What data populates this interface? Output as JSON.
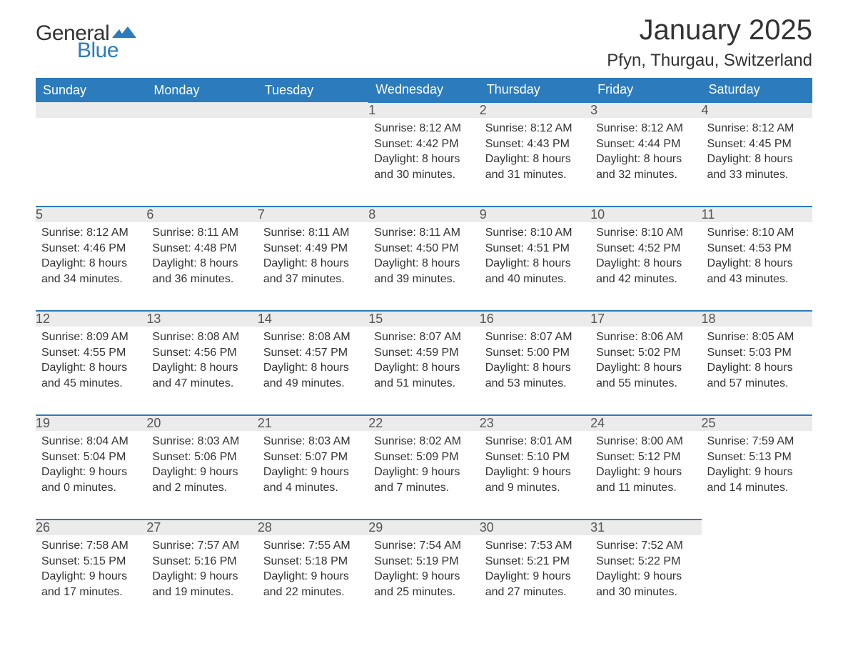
{
  "brand": {
    "general": "General",
    "blue": "Blue"
  },
  "title": "January 2025",
  "location": "Pfyn, Thurgau, Switzerland",
  "colors": {
    "header_bg": "#2b7bbd",
    "header_text": "#ffffff",
    "daynum_bg": "#ebebeb",
    "daynum_border": "#2b7bbd",
    "body_text": "#333333",
    "logo_blue": "#2b7bbd"
  },
  "weekdays": [
    "Sunday",
    "Monday",
    "Tuesday",
    "Wednesday",
    "Thursday",
    "Friday",
    "Saturday"
  ],
  "weeks": [
    [
      {
        "n": "",
        "sunrise": "",
        "sunset": "",
        "daylight": ""
      },
      {
        "n": "",
        "sunrise": "",
        "sunset": "",
        "daylight": ""
      },
      {
        "n": "",
        "sunrise": "",
        "sunset": "",
        "daylight": ""
      },
      {
        "n": "1",
        "sunrise": "Sunrise: 8:12 AM",
        "sunset": "Sunset: 4:42 PM",
        "daylight": "Daylight: 8 hours and 30 minutes."
      },
      {
        "n": "2",
        "sunrise": "Sunrise: 8:12 AM",
        "sunset": "Sunset: 4:43 PM",
        "daylight": "Daylight: 8 hours and 31 minutes."
      },
      {
        "n": "3",
        "sunrise": "Sunrise: 8:12 AM",
        "sunset": "Sunset: 4:44 PM",
        "daylight": "Daylight: 8 hours and 32 minutes."
      },
      {
        "n": "4",
        "sunrise": "Sunrise: 8:12 AM",
        "sunset": "Sunset: 4:45 PM",
        "daylight": "Daylight: 8 hours and 33 minutes."
      }
    ],
    [
      {
        "n": "5",
        "sunrise": "Sunrise: 8:12 AM",
        "sunset": "Sunset: 4:46 PM",
        "daylight": "Daylight: 8 hours and 34 minutes."
      },
      {
        "n": "6",
        "sunrise": "Sunrise: 8:11 AM",
        "sunset": "Sunset: 4:48 PM",
        "daylight": "Daylight: 8 hours and 36 minutes."
      },
      {
        "n": "7",
        "sunrise": "Sunrise: 8:11 AM",
        "sunset": "Sunset: 4:49 PM",
        "daylight": "Daylight: 8 hours and 37 minutes."
      },
      {
        "n": "8",
        "sunrise": "Sunrise: 8:11 AM",
        "sunset": "Sunset: 4:50 PM",
        "daylight": "Daylight: 8 hours and 39 minutes."
      },
      {
        "n": "9",
        "sunrise": "Sunrise: 8:10 AM",
        "sunset": "Sunset: 4:51 PM",
        "daylight": "Daylight: 8 hours and 40 minutes."
      },
      {
        "n": "10",
        "sunrise": "Sunrise: 8:10 AM",
        "sunset": "Sunset: 4:52 PM",
        "daylight": "Daylight: 8 hours and 42 minutes."
      },
      {
        "n": "11",
        "sunrise": "Sunrise: 8:10 AM",
        "sunset": "Sunset: 4:53 PM",
        "daylight": "Daylight: 8 hours and 43 minutes."
      }
    ],
    [
      {
        "n": "12",
        "sunrise": "Sunrise: 8:09 AM",
        "sunset": "Sunset: 4:55 PM",
        "daylight": "Daylight: 8 hours and 45 minutes."
      },
      {
        "n": "13",
        "sunrise": "Sunrise: 8:08 AM",
        "sunset": "Sunset: 4:56 PM",
        "daylight": "Daylight: 8 hours and 47 minutes."
      },
      {
        "n": "14",
        "sunrise": "Sunrise: 8:08 AM",
        "sunset": "Sunset: 4:57 PM",
        "daylight": "Daylight: 8 hours and 49 minutes."
      },
      {
        "n": "15",
        "sunrise": "Sunrise: 8:07 AM",
        "sunset": "Sunset: 4:59 PM",
        "daylight": "Daylight: 8 hours and 51 minutes."
      },
      {
        "n": "16",
        "sunrise": "Sunrise: 8:07 AM",
        "sunset": "Sunset: 5:00 PM",
        "daylight": "Daylight: 8 hours and 53 minutes."
      },
      {
        "n": "17",
        "sunrise": "Sunrise: 8:06 AM",
        "sunset": "Sunset: 5:02 PM",
        "daylight": "Daylight: 8 hours and 55 minutes."
      },
      {
        "n": "18",
        "sunrise": "Sunrise: 8:05 AM",
        "sunset": "Sunset: 5:03 PM",
        "daylight": "Daylight: 8 hours and 57 minutes."
      }
    ],
    [
      {
        "n": "19",
        "sunrise": "Sunrise: 8:04 AM",
        "sunset": "Sunset: 5:04 PM",
        "daylight": "Daylight: 9 hours and 0 minutes."
      },
      {
        "n": "20",
        "sunrise": "Sunrise: 8:03 AM",
        "sunset": "Sunset: 5:06 PM",
        "daylight": "Daylight: 9 hours and 2 minutes."
      },
      {
        "n": "21",
        "sunrise": "Sunrise: 8:03 AM",
        "sunset": "Sunset: 5:07 PM",
        "daylight": "Daylight: 9 hours and 4 minutes."
      },
      {
        "n": "22",
        "sunrise": "Sunrise: 8:02 AM",
        "sunset": "Sunset: 5:09 PM",
        "daylight": "Daylight: 9 hours and 7 minutes."
      },
      {
        "n": "23",
        "sunrise": "Sunrise: 8:01 AM",
        "sunset": "Sunset: 5:10 PM",
        "daylight": "Daylight: 9 hours and 9 minutes."
      },
      {
        "n": "24",
        "sunrise": "Sunrise: 8:00 AM",
        "sunset": "Sunset: 5:12 PM",
        "daylight": "Daylight: 9 hours and 11 minutes."
      },
      {
        "n": "25",
        "sunrise": "Sunrise: 7:59 AM",
        "sunset": "Sunset: 5:13 PM",
        "daylight": "Daylight: 9 hours and 14 minutes."
      }
    ],
    [
      {
        "n": "26",
        "sunrise": "Sunrise: 7:58 AM",
        "sunset": "Sunset: 5:15 PM",
        "daylight": "Daylight: 9 hours and 17 minutes."
      },
      {
        "n": "27",
        "sunrise": "Sunrise: 7:57 AM",
        "sunset": "Sunset: 5:16 PM",
        "daylight": "Daylight: 9 hours and 19 minutes."
      },
      {
        "n": "28",
        "sunrise": "Sunrise: 7:55 AM",
        "sunset": "Sunset: 5:18 PM",
        "daylight": "Daylight: 9 hours and 22 minutes."
      },
      {
        "n": "29",
        "sunrise": "Sunrise: 7:54 AM",
        "sunset": "Sunset: 5:19 PM",
        "daylight": "Daylight: 9 hours and 25 minutes."
      },
      {
        "n": "30",
        "sunrise": "Sunrise: 7:53 AM",
        "sunset": "Sunset: 5:21 PM",
        "daylight": "Daylight: 9 hours and 27 minutes."
      },
      {
        "n": "31",
        "sunrise": "Sunrise: 7:52 AM",
        "sunset": "Sunset: 5:22 PM",
        "daylight": "Daylight: 9 hours and 30 minutes."
      },
      {
        "n": "",
        "sunrise": "",
        "sunset": "",
        "daylight": ""
      }
    ]
  ]
}
